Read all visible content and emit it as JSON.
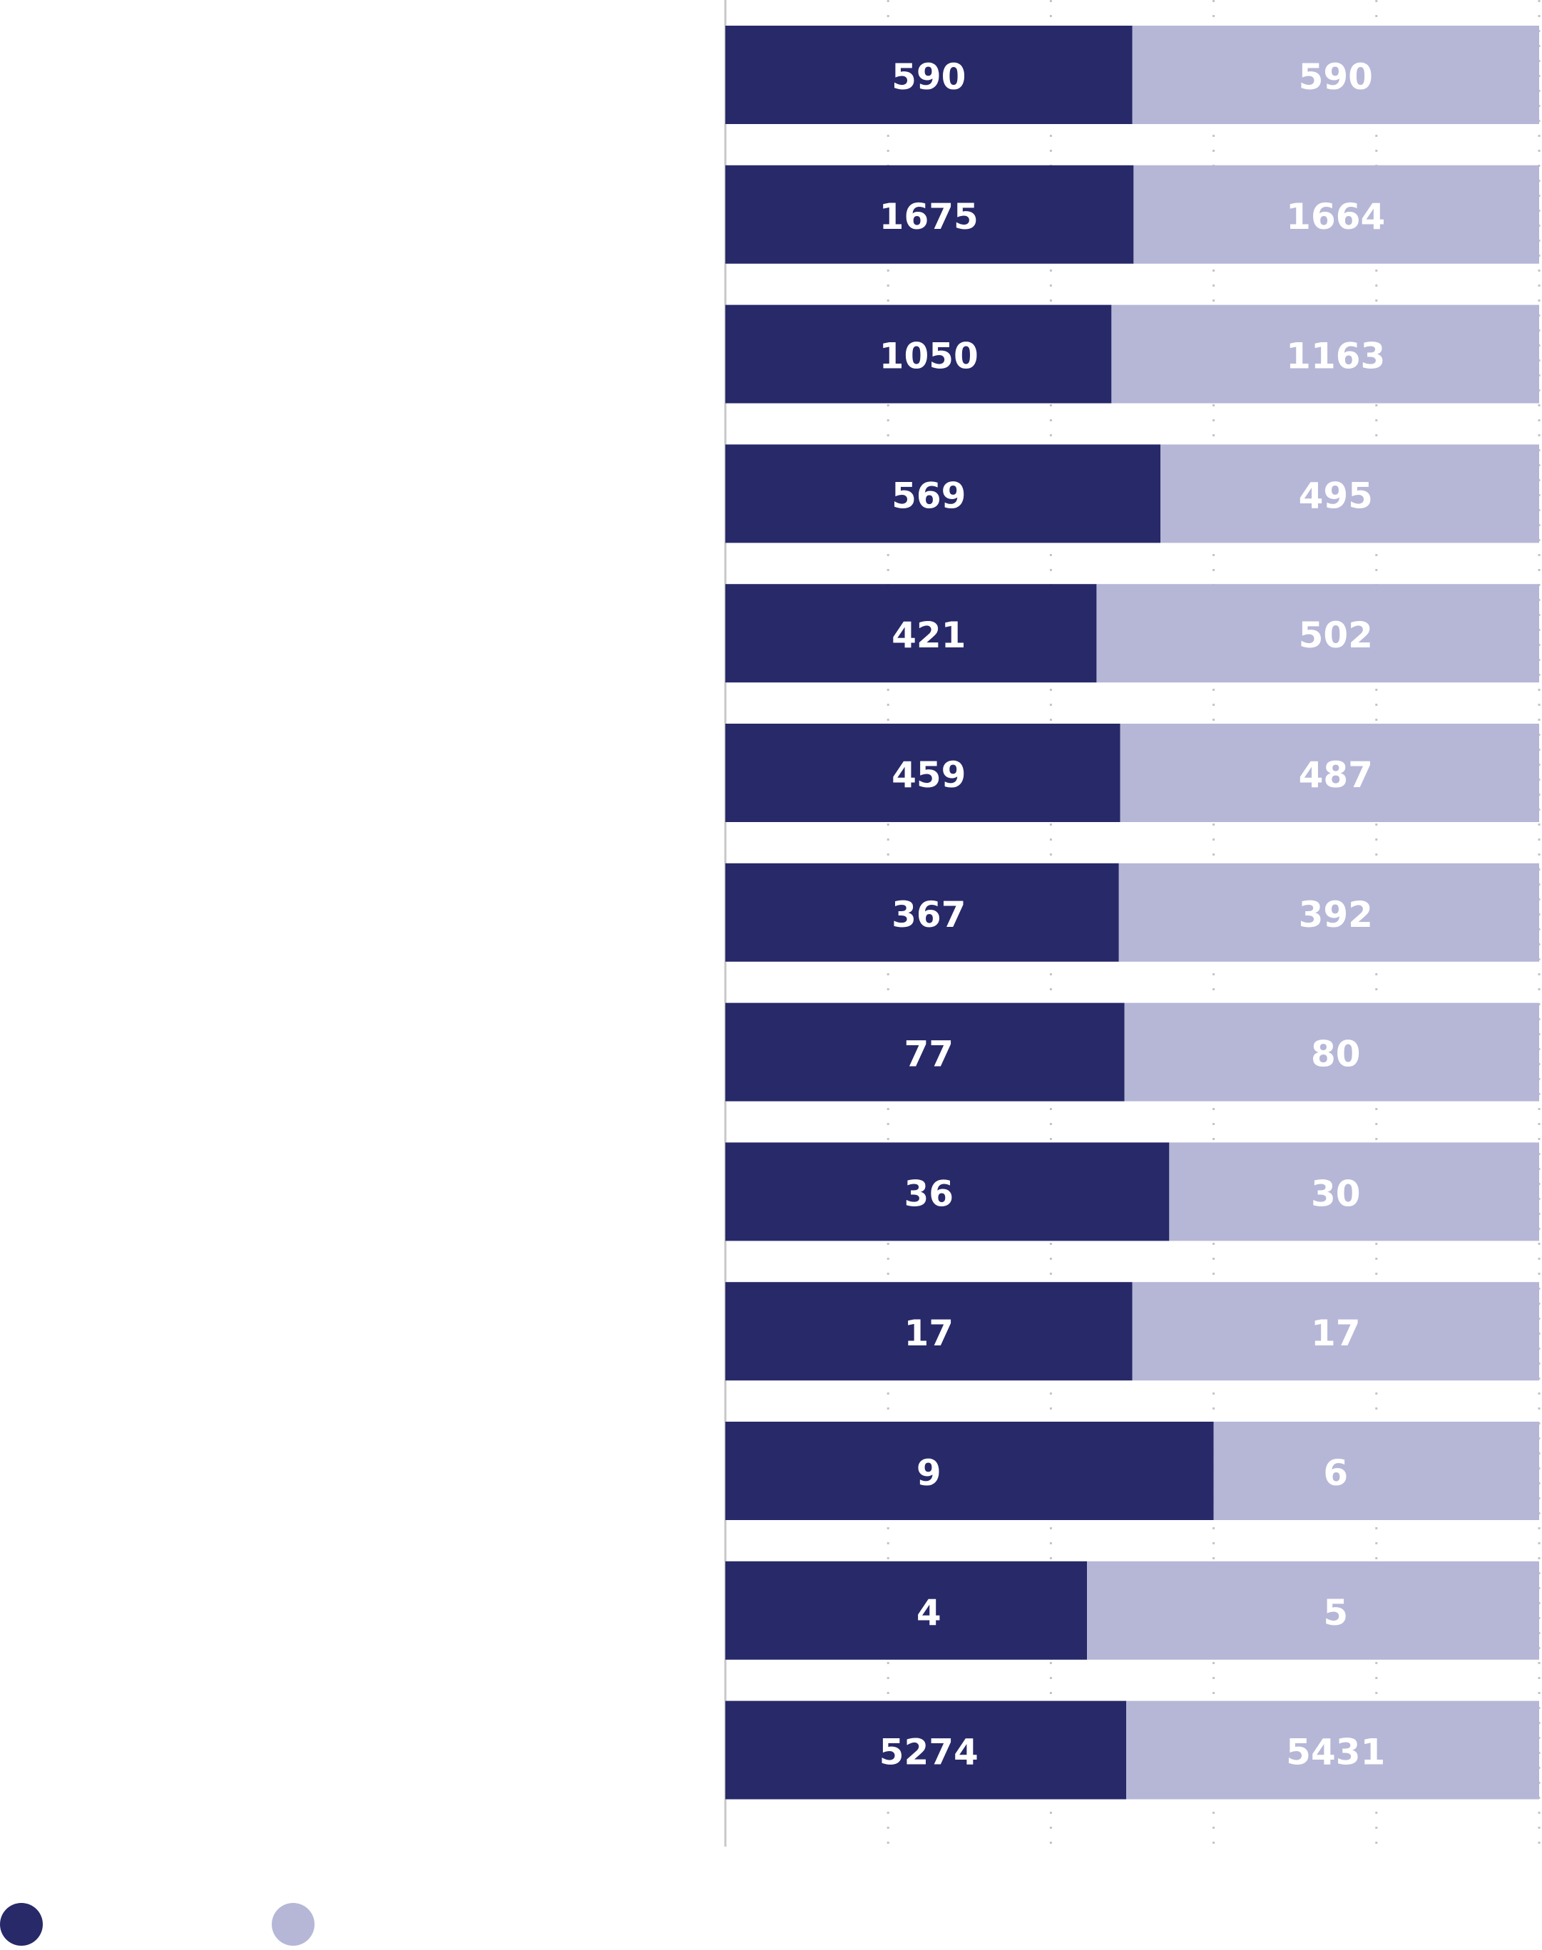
{
  "chart_data": {
    "type": "bar",
    "orientation": "horizontal",
    "stacked": "percent",
    "categories": [
      null,
      null,
      null,
      null,
      null,
      null,
      null,
      null,
      null,
      null,
      null,
      null,
      null
    ],
    "series": [
      {
        "color": "#272969",
        "values": [
          590,
          1675,
          1050,
          569,
          421,
          459,
          367,
          77,
          36,
          17,
          9,
          4,
          5274
        ]
      },
      {
        "color": "#b6b7d7",
        "values": [
          590,
          1664,
          1163,
          495,
          502,
          487,
          392,
          80,
          30,
          17,
          6,
          5,
          5431
        ]
      }
    ],
    "xlim": [
      0,
      100
    ],
    "xticks": [
      0,
      20,
      40,
      60,
      80,
      100
    ],
    "grid": true
  }
}
